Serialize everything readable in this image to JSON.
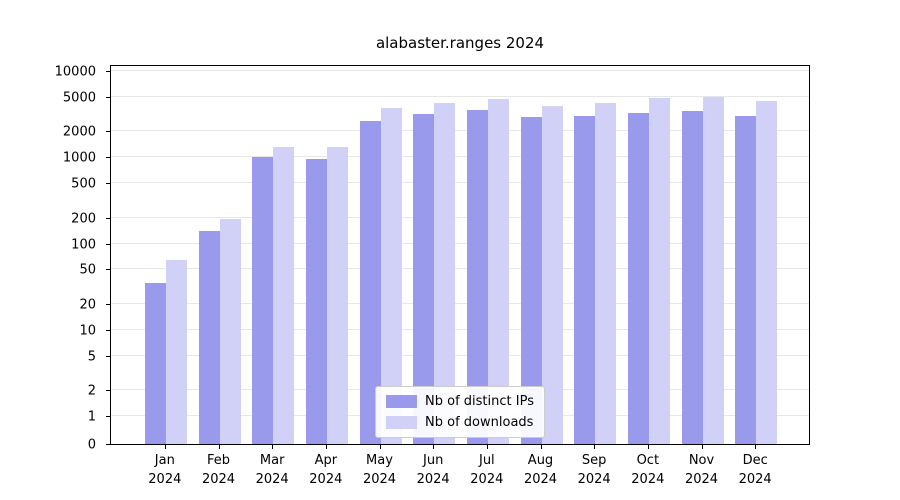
{
  "chart_data": {
    "type": "bar",
    "title": "alabaster.ranges 2024",
    "categories": [
      "Jan",
      "Feb",
      "Mar",
      "Apr",
      "May",
      "Jun",
      "Jul",
      "Aug",
      "Sep",
      "Oct",
      "Nov",
      "Dec"
    ],
    "x_tick_second_line": "2024",
    "series": [
      {
        "name": "Nb of distinct IPs",
        "color": "#9a9aec",
        "values": [
          35,
          140,
          1000,
          950,
          2600,
          3200,
          3500,
          2900,
          3000,
          3300,
          3400,
          3000
        ]
      },
      {
        "name": "Nb of downloads",
        "color": "#d1d1f8",
        "values": [
          65,
          190,
          1300,
          1300,
          3700,
          4300,
          4700,
          3900,
          4300,
          4900,
          5000,
          4500
        ]
      }
    ],
    "yscale": "symlog",
    "yticks": [
      0,
      1,
      2,
      5,
      10,
      20,
      50,
      100,
      200,
      500,
      1000,
      2000,
      5000,
      10000
    ],
    "ylim": [
      0,
      10000
    ],
    "grid": true,
    "legend_position": "lower center"
  }
}
